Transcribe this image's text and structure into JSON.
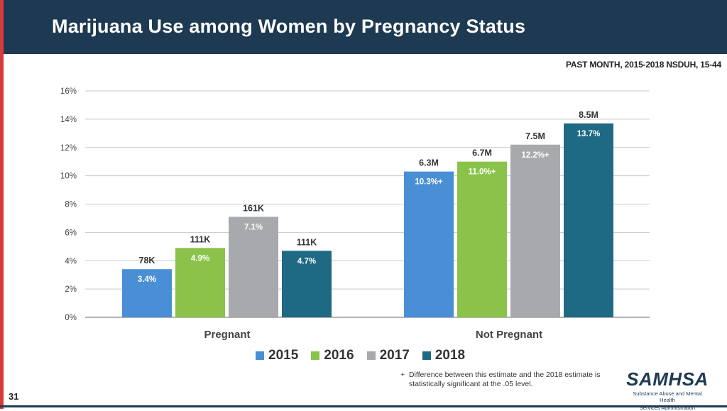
{
  "header": {
    "title": "Marijuana Use among Women by Pregnancy Status"
  },
  "subtitle": "PAST MONTH, 2015-2018 NSDUH, 15-44",
  "colors": {
    "2015": "#4a8fd6",
    "2016": "#8bc34a",
    "2017": "#a7a9ac",
    "2018": "#1e6a85",
    "header": "#1e3a52",
    "accent": "#d93a3a"
  },
  "chart_data": {
    "type": "bar",
    "title": "Marijuana Use among Women by Pregnancy Status",
    "categories": [
      "Pregnant",
      "Not Pregnant"
    ],
    "ylim": [
      0,
      16
    ],
    "yticks": [
      0,
      2,
      4,
      6,
      8,
      10,
      12,
      14,
      16
    ],
    "ytick_labels": [
      "0%",
      "2%",
      "4%",
      "6%",
      "8%",
      "10%",
      "12%",
      "14%",
      "16%"
    ],
    "series": [
      {
        "name": "2015",
        "values": [
          3.4,
          10.3
        ],
        "value_labels": [
          "3.4%",
          "10.3%"
        ],
        "counts": [
          "78K",
          "6.3M"
        ],
        "sig": [
          false,
          true
        ]
      },
      {
        "name": "2016",
        "values": [
          4.9,
          11.0
        ],
        "value_labels": [
          "4.9%",
          "11.0%"
        ],
        "counts": [
          "111K",
          "6.7M"
        ],
        "sig": [
          false,
          true
        ]
      },
      {
        "name": "2017",
        "values": [
          7.1,
          12.2
        ],
        "value_labels": [
          "7.1%",
          "12.2%"
        ],
        "counts": [
          "161K",
          "7.5M"
        ],
        "sig": [
          false,
          true
        ]
      },
      {
        "name": "2018",
        "values": [
          4.7,
          13.7
        ],
        "value_labels": [
          "4.7%",
          "13.7%"
        ],
        "counts": [
          "111K",
          "8.5M"
        ],
        "sig": [
          false,
          false
        ]
      }
    ],
    "sig_marker": "+"
  },
  "footnote": {
    "marker": "+",
    "text": "Difference between this estimate and the 2018 estimate is statistically significant at the .05 level."
  },
  "page_number": "31",
  "logo": {
    "name": "SAMHSA",
    "line1": "Substance Abuse and Mental Health",
    "line2": "Services Administration"
  }
}
